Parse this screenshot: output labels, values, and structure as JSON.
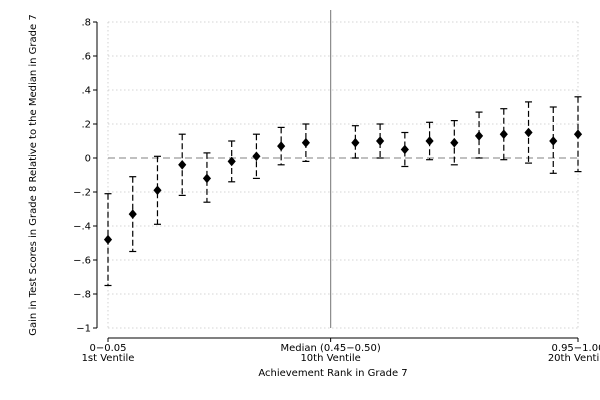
{
  "chart_data": {
    "type": "scatter",
    "title": "",
    "xlabel": "Achievement Rank in Grade 7",
    "ylabel": "Gain in Test Scores in Grade 8 Relative to the Median in Grade 7",
    "x": [
      1,
      2,
      3,
      4,
      5,
      6,
      7,
      8,
      9,
      11,
      12,
      13,
      14,
      15,
      16,
      17,
      18,
      19,
      20
    ],
    "series": [
      {
        "values": [
          -0.48,
          -0.33,
          -0.19,
          -0.04,
          -0.12,
          -0.02,
          0.01,
          0.07,
          0.09,
          0.09,
          0.1,
          0.05,
          0.1,
          0.09,
          0.13,
          0.14,
          0.15,
          0.1,
          0.14
        ],
        "ci_low": [
          -0.75,
          -0.55,
          -0.39,
          -0.22,
          -0.26,
          -0.14,
          -0.12,
          -0.04,
          -0.02,
          0.0,
          0.0,
          -0.05,
          -0.01,
          -0.04,
          0.0,
          -0.01,
          -0.03,
          -0.09,
          -0.08
        ],
        "ci_high": [
          -0.21,
          -0.11,
          0.01,
          0.14,
          0.03,
          0.1,
          0.14,
          0.18,
          0.2,
          0.19,
          0.2,
          0.15,
          0.21,
          0.22,
          0.27,
          0.29,
          0.33,
          0.3,
          0.36
        ]
      }
    ],
    "xlim": [
      1,
      20
    ],
    "ylim": [
      -1,
      0.8
    ],
    "yticks": [
      {
        "value": 0.8,
        "label": ".8"
      },
      {
        "value": 0.6,
        "label": ".6"
      },
      {
        "value": 0.4,
        "label": ".4"
      },
      {
        "value": 0.2,
        "label": ".2"
      },
      {
        "value": 0,
        "label": "0"
      },
      {
        "value": -0.2,
        "label": "−.2"
      },
      {
        "value": -0.4,
        "label": "−.4"
      },
      {
        "value": -0.6,
        "label": "−.6"
      },
      {
        "value": -0.8,
        "label": "−.8"
      },
      {
        "value": -1,
        "label": "−1"
      }
    ],
    "xticks": [
      {
        "value": 1,
        "line1": "0−0.05",
        "line2": "1st Ventile"
      },
      {
        "value": 10,
        "line1": "Median (0.45−0.50)",
        "line2": "10th Ventile"
      },
      {
        "value": 20,
        "line1": "0.95−1.00",
        "line2": "20th Ventile"
      }
    ],
    "reference_lines": {
      "horizontal_dashed": 0,
      "vertical_solid": 10
    },
    "grid": true,
    "legend": "none"
  }
}
